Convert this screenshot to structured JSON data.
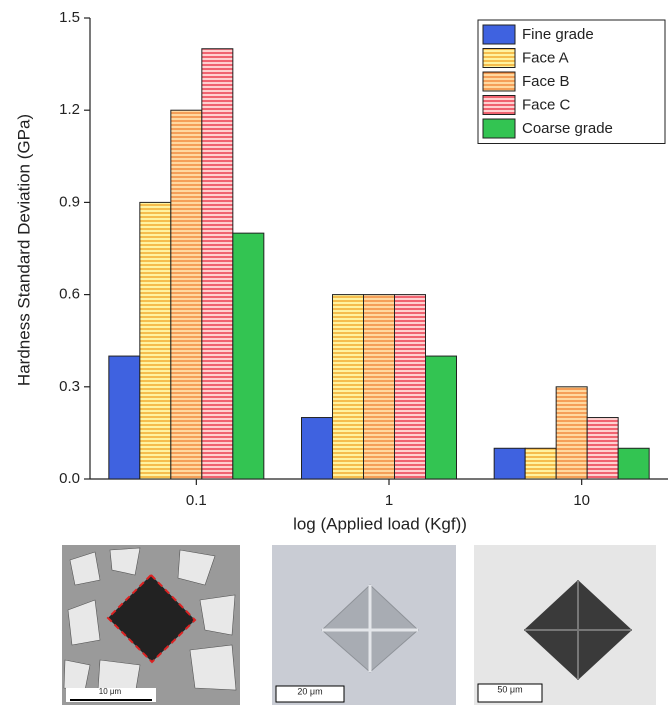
{
  "chart_data": {
    "type": "bar",
    "y_label": "Hardness Standard Deviation (GPa)",
    "x_label": "log (Applied load (Kgf))",
    "categories": [
      "0.1",
      "1",
      "10"
    ],
    "series": [
      {
        "name": "Fine grade",
        "color": "#3f62e0",
        "hatch": false,
        "values": [
          0.4,
          0.2,
          0.1
        ]
      },
      {
        "name": "Face A",
        "color": "#f0a020",
        "background": "#fff3a0",
        "hatch": true,
        "values": [
          0.9,
          0.6,
          0.1
        ]
      },
      {
        "name": "Face B",
        "color": "#f08030",
        "background": "#ffd9a0",
        "hatch": true,
        "values": [
          1.2,
          0.6,
          0.3
        ]
      },
      {
        "name": "Face C",
        "color": "#e8283c",
        "background": "#ffd0d0",
        "hatch": true,
        "values": [
          1.4,
          0.6,
          0.2
        ]
      },
      {
        "name": "Coarse grade",
        "color": "#33c452",
        "hatch": false,
        "values": [
          0.8,
          0.4,
          0.1
        ]
      }
    ],
    "ylim": [
      0,
      1.5
    ],
    "yticks": [
      {
        "value": 0,
        "label": "0.0"
      },
      0.3,
      0.6,
      0.9,
      1.2,
      1.5
    ],
    "legend": "top-right"
  },
  "images": [
    {
      "scale_label": "10 μm"
    },
    {
      "scale_label": "20 μm"
    },
    {
      "scale_label": "50 μm"
    }
  ]
}
